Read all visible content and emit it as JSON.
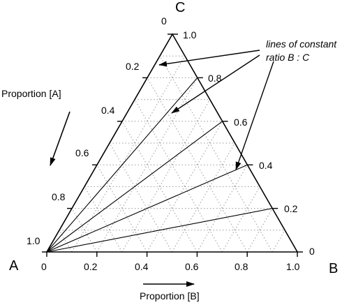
{
  "vertices": {
    "a": "A",
    "b": "B",
    "c": "C"
  },
  "axis_titles": {
    "proportion_a": "Proportion [A]",
    "proportion_b": "Proportion [B]"
  },
  "ticks": {
    "bottom": [
      "0",
      "0.2",
      "0.4",
      "0.6",
      "0.8",
      "1.0"
    ],
    "left": [
      "1.0",
      "0.8",
      "0.6",
      "0.4",
      "0.2",
      "0"
    ],
    "right": [
      "0",
      "0.2",
      "0.4",
      "0.6",
      "0.8",
      "1.0"
    ]
  },
  "annotation": {
    "line1": "lines of constant",
    "line2": "ratio B : C"
  },
  "grid_step": 0.1,
  "constant_ratio_lines": [
    0.2,
    0.4,
    0.6,
    0.8
  ],
  "colors": {
    "ink": "#000000",
    "grid": "#9a9a9a"
  }
}
